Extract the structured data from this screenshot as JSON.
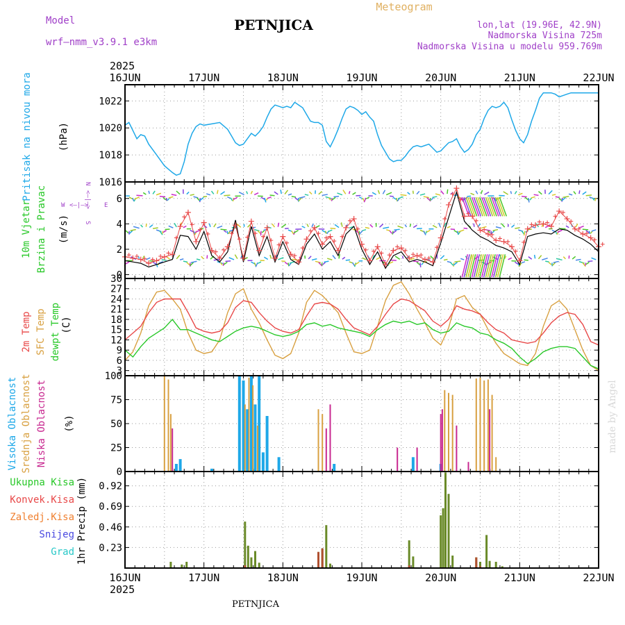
{
  "header": {
    "model_label": "Model",
    "model_name": "wrf—nmm_v3.9.1  e3km",
    "station": "PETNJICA",
    "meteogram": "Meteogram",
    "coords": "lon,lat (19.96E, 42.9N)",
    "elev": "Nadmorska Visina 725m",
    "elev_model": "Nadmorska Visina u modelu 959.769m"
  },
  "footer": {
    "station": "PETNJICA",
    "credit": "made by Angel"
  },
  "x_axis": {
    "labels": [
      "16JUN",
      "17JUN",
      "18JUN",
      "19JUN",
      "20JUN",
      "21JUN",
      "22JUN"
    ],
    "year": "2025"
  },
  "colors": {
    "pressure": "#1ea8e8",
    "temp": "#e84848",
    "sfc": "#d8a040",
    "dew": "#28c828",
    "wind_line": "#000000",
    "gust": "#e84848",
    "purple": "#a040c8",
    "black": "#000000"
  },
  "chart_data": [
    {
      "type": "line",
      "id": "pressure",
      "title": "Pritisak na nivou mora",
      "ylabel": "(hPa)",
      "yticks": [
        1016,
        1018,
        1020,
        1022
      ],
      "ylim": [
        1016,
        1023.2
      ],
      "x_days": [
        0.0,
        0.05,
        0.1,
        0.15,
        0.2,
        0.25,
        0.3,
        0.4,
        0.5,
        0.6,
        0.65,
        0.7,
        0.75,
        0.8,
        0.85,
        0.9,
        0.95,
        1.0,
        1.1,
        1.2,
        1.3,
        1.35,
        1.4,
        1.45,
        1.5,
        1.55,
        1.6,
        1.65,
        1.7,
        1.75,
        1.8,
        1.85,
        1.9,
        1.95,
        2.0,
        2.05,
        2.1,
        2.15,
        2.2,
        2.25,
        2.3,
        2.35,
        2.4,
        2.45,
        2.5,
        2.55,
        2.6,
        2.65,
        2.7,
        2.75,
        2.8,
        2.85,
        2.9,
        2.95,
        3.0,
        3.05,
        3.1,
        3.15,
        3.2,
        3.25,
        3.3,
        3.35,
        3.4,
        3.45,
        3.5,
        3.55,
        3.6,
        3.65,
        3.7,
        3.75,
        3.8,
        3.85,
        3.9,
        3.95,
        4.0,
        4.05,
        4.1,
        4.15,
        4.2,
        4.25,
        4.3,
        4.35,
        4.4,
        4.45,
        4.5,
        4.55,
        4.6,
        4.65,
        4.7,
        4.75,
        4.8,
        4.85,
        4.9,
        4.95,
        5.0,
        5.05,
        5.1,
        5.15,
        5.2,
        5.25,
        5.3,
        5.35,
        5.4,
        5.45,
        5.5,
        5.55,
        5.6,
        5.65,
        5.7,
        5.75,
        5.8,
        5.85,
        5.9,
        5.95,
        6.0
      ],
      "values": [
        1020.2,
        1020.4,
        1019.8,
        1019.2,
        1019.5,
        1019.4,
        1018.8,
        1018.0,
        1017.2,
        1016.7,
        1016.5,
        1016.6,
        1017.5,
        1018.8,
        1019.6,
        1020.1,
        1020.3,
        1020.2,
        1020.3,
        1020.4,
        1019.9,
        1019.4,
        1018.9,
        1018.7,
        1018.8,
        1019.2,
        1019.6,
        1019.4,
        1019.7,
        1020.1,
        1020.8,
        1021.4,
        1021.7,
        1021.6,
        1021.5,
        1021.6,
        1021.5,
        1021.9,
        1021.7,
        1021.5,
        1021.0,
        1020.5,
        1020.4,
        1020.4,
        1020.2,
        1019.0,
        1018.6,
        1019.2,
        1019.9,
        1020.7,
        1021.4,
        1021.6,
        1021.5,
        1021.3,
        1021.0,
        1021.2,
        1020.8,
        1020.5,
        1019.5,
        1018.7,
        1018.2,
        1017.7,
        1017.5,
        1017.6,
        1017.6,
        1017.9,
        1018.3,
        1018.6,
        1018.7,
        1018.6,
        1018.7,
        1018.8,
        1018.5,
        1018.2,
        1018.3,
        1018.6,
        1018.9,
        1019.0,
        1019.2,
        1018.6,
        1018.2,
        1018.4,
        1018.8,
        1019.5,
        1019.9,
        1020.7,
        1021.3,
        1021.6,
        1021.5,
        1021.6,
        1021.9,
        1021.5,
        1020.6,
        1019.8,
        1019.2,
        1018.9,
        1019.5,
        1020.5,
        1021.3,
        1022.2,
        1022.6,
        1022.6,
        1022.6,
        1022.5,
        1022.3,
        1022.4,
        1022.5,
        1022.6,
        1022.6,
        1022.6,
        1022.6,
        1022.6,
        1022.6,
        1022.6,
        1022.6
      ]
    },
    {
      "type": "line",
      "id": "wind",
      "title": "10m Vjetar",
      "title2": "Brzina i Pravac",
      "ylabel": "(m/s)",
      "yticks": [
        0,
        2,
        4,
        6
      ],
      "ylim": [
        -0.3,
        7.3
      ],
      "x_days": [
        0.0,
        0.1,
        0.2,
        0.3,
        0.4,
        0.5,
        0.6,
        0.7,
        0.8,
        0.9,
        1.0,
        1.1,
        1.2,
        1.3,
        1.4,
        1.5,
        1.6,
        1.7,
        1.8,
        1.9,
        2.0,
        2.1,
        2.2,
        2.3,
        2.4,
        2.5,
        2.6,
        2.7,
        2.8,
        2.9,
        3.0,
        3.1,
        3.2,
        3.3,
        3.4,
        3.5,
        3.6,
        3.7,
        3.8,
        3.9,
        4.0,
        4.1,
        4.2,
        4.3,
        4.4,
        4.5,
        4.6,
        4.7,
        4.8,
        4.9,
        5.0,
        5.1,
        5.2,
        5.3,
        5.4,
        5.5,
        5.6,
        5.7,
        5.8,
        5.9,
        6.0
      ],
      "speed": [
        1.1,
        1.0,
        0.9,
        0.6,
        0.8,
        1.0,
        1.2,
        3.1,
        3.0,
        2.0,
        3.4,
        1.5,
        1.0,
        1.8,
        4.3,
        1.0,
        3.8,
        1.5,
        3.0,
        1.0,
        2.6,
        1.2,
        0.8,
        2.4,
        3.2,
        2.0,
        2.6,
        1.5,
        3.2,
        3.8,
        2.0,
        0.8,
        1.8,
        0.5,
        1.5,
        1.8,
        1.0,
        1.2,
        1.0,
        0.7,
        2.5,
        4.5,
        6.5,
        4.2,
        3.5,
        3.0,
        2.7,
        2.3,
        2.1,
        1.8,
        0.8,
        3.0,
        3.2,
        3.3,
        3.2,
        3.6,
        3.5,
        3.1,
        2.8,
        2.4,
        1.8
      ],
      "gust": [
        1.4,
        1.3,
        1.2,
        0.9,
        1.1,
        1.4,
        1.6,
        3.8,
        4.9,
        2.6,
        4.1,
        1.9,
        1.3,
        2.2,
        3.9,
        1.3,
        4.2,
        1.9,
        3.7,
        1.3,
        3.0,
        1.6,
        1.0,
        2.8,
        3.7,
        2.4,
        3.0,
        1.9,
        3.7,
        4.4,
        2.4,
        1.1,
        2.2,
        0.8,
        1.9,
        2.1,
        1.3,
        1.5,
        1.2,
        1.0,
        2.9,
        5.5,
        6.8,
        4.6,
        4.6,
        3.5,
        3.2,
        2.7,
        2.6,
        2.2,
        1.1,
        3.6,
        3.9,
        4.0,
        3.8,
        5.0,
        4.4,
        3.6,
        3.2,
        2.9,
        2.2
      ],
      "arrow_rows": [
        6.2,
        3.6,
        1.1
      ],
      "axis_hint": [
        "W",
        "<—|—>",
        "E",
        "N",
        "<—|—>",
        "S"
      ]
    },
    {
      "type": "line",
      "id": "temperature",
      "title": "2m Temp",
      "title2": "SFC Temp",
      "title3": "dewpt Temp",
      "ylabel": "(C)",
      "yticks": [
        3,
        6,
        9,
        12,
        15,
        18,
        21,
        24,
        27,
        30
      ],
      "ylim": [
        1.5,
        30
      ],
      "x_days": [
        0.0,
        0.1,
        0.2,
        0.3,
        0.4,
        0.5,
        0.6,
        0.7,
        0.8,
        0.9,
        1.0,
        1.1,
        1.2,
        1.3,
        1.4,
        1.5,
        1.6,
        1.7,
        1.8,
        1.9,
        2.0,
        2.1,
        2.2,
        2.3,
        2.4,
        2.5,
        2.6,
        2.7,
        2.8,
        2.9,
        3.0,
        3.1,
        3.2,
        3.3,
        3.4,
        3.5,
        3.6,
        3.7,
        3.8,
        3.9,
        4.0,
        4.1,
        4.2,
        4.3,
        4.4,
        4.5,
        4.6,
        4.7,
        4.8,
        4.9,
        5.0,
        5.1,
        5.2,
        5.3,
        5.4,
        5.5,
        5.6,
        5.7,
        5.8,
        5.9,
        6.0
      ],
      "t2m": [
        12.0,
        14.0,
        16.0,
        20.0,
        23.0,
        24.0,
        24.0,
        24.0,
        20.0,
        15.5,
        14.5,
        14.0,
        14.5,
        17.0,
        21.5,
        23.5,
        23.0,
        20.0,
        17.5,
        15.5,
        14.5,
        14.0,
        15.0,
        19.0,
        22.5,
        23.0,
        22.5,
        21.0,
        18.0,
        15.5,
        14.5,
        13.5,
        16.0,
        19.5,
        22.5,
        24.0,
        23.5,
        22.0,
        20.5,
        17.5,
        16.0,
        18.0,
        22.0,
        21.0,
        20.5,
        19.5,
        17.0,
        15.0,
        14.0,
        12.0,
        11.5,
        11.0,
        11.5,
        14.0,
        17.0,
        19.0,
        20.0,
        19.5,
        16.5,
        11.5,
        10.5
      ],
      "sfc": [
        6.0,
        8.5,
        14.0,
        22.0,
        26.0,
        26.5,
        24.0,
        21.0,
        14.0,
        9.0,
        8.0,
        8.5,
        12.0,
        20.0,
        25.5,
        27.0,
        21.0,
        17.0,
        12.0,
        7.5,
        6.5,
        8.0,
        14.0,
        23.0,
        26.5,
        25.0,
        22.5,
        20.0,
        14.0,
        8.5,
        8.0,
        9.0,
        16.0,
        23.5,
        28.0,
        29.0,
        25.5,
        21.0,
        17.0,
        12.5,
        10.5,
        15.5,
        24.0,
        25.0,
        21.5,
        19.5,
        15.0,
        11.0,
        8.0,
        6.5,
        5.0,
        4.5,
        8.0,
        16.0,
        22.0,
        23.5,
        21.0,
        15.0,
        9.0,
        4.5,
        3.0
      ],
      "dew": [
        9.0,
        7.0,
        10.0,
        12.5,
        14.0,
        15.5,
        18.0,
        15.0,
        15.0,
        14.0,
        13.0,
        12.0,
        11.5,
        13.0,
        14.5,
        15.5,
        16.0,
        15.5,
        14.5,
        13.5,
        13.0,
        13.5,
        14.5,
        16.5,
        17.0,
        16.0,
        16.5,
        15.5,
        15.0,
        14.5,
        14.0,
        13.0,
        15.0,
        16.5,
        17.5,
        17.0,
        17.5,
        16.5,
        17.0,
        15.0,
        14.0,
        14.5,
        17.0,
        16.0,
        15.5,
        14.0,
        13.5,
        12.0,
        11.0,
        9.5,
        7.0,
        5.0,
        6.5,
        8.5,
        9.5,
        10.0,
        10.0,
        9.5,
        7.0,
        4.5,
        3.5
      ]
    },
    {
      "type": "bar",
      "id": "clouds",
      "title": "Visoka Oblacnost",
      "title2": "Srednja Oblacnost",
      "title3": "Niska Oblacnost",
      "ylabel": "(%)",
      "yticks": [
        0,
        25,
        50,
        75,
        100
      ],
      "ylim": [
        0,
        100
      ],
      "series": [
        {
          "name": "Visoka",
          "color": "#1ea8e8",
          "x": [
            0.7,
            0.65,
            1.1,
            1.45,
            1.5,
            1.55,
            1.6,
            1.65,
            1.7,
            1.75,
            1.8,
            1.95,
            2.65,
            4.0,
            3.65
          ],
          "values": [
            13,
            8,
            3,
            100,
            95,
            65,
            100,
            70,
            100,
            20,
            58,
            15,
            8,
            8,
            15
          ]
        },
        {
          "name": "Srednja",
          "color": "#d8a040",
          "x": [
            0.5,
            0.55,
            0.58,
            1.52,
            1.57,
            1.62,
            1.68,
            2.45,
            2.5,
            4.05,
            4.1,
            4.15,
            4.45,
            4.5,
            4.55,
            4.6,
            4.65,
            4.7
          ],
          "values": [
            100,
            96,
            60,
            70,
            98,
            90,
            48,
            65,
            60,
            85,
            82,
            80,
            97,
            98,
            95,
            96,
            80,
            15
          ]
        },
        {
          "name": "Niska",
          "color": "#c82890",
          "x": [
            0.6,
            2.55,
            2.6,
            4.02,
            4.2,
            4.35,
            4.62,
            3.7,
            3.45,
            4.0
          ],
          "values": [
            45,
            45,
            70,
            65,
            48,
            10,
            65,
            25,
            25,
            60
          ]
        }
      ]
    },
    {
      "type": "bar",
      "id": "precip",
      "title": "Ukupna Kisa",
      "title2": "Konvek.Kisa",
      "title3": "Zaledj.Kisa",
      "title4": "Snijeg",
      "title5": "Grad",
      "ylabel": "1hr Precip (mm)",
      "yticks": [
        0.23,
        0.46,
        0.69,
        0.92
      ],
      "ylim": [
        0,
        1.08
      ],
      "tick_labels": [
        "0.23",
        "0.46",
        "0.69",
        "0.92"
      ],
      "x": [
        0.58,
        0.72,
        0.78,
        1.52,
        1.56,
        1.6,
        1.65,
        1.7,
        2.45,
        2.5,
        2.55,
        2.6,
        3.6,
        3.65,
        4.0,
        4.03,
        4.06,
        4.1,
        4.15,
        4.45,
        4.5,
        4.58,
        4.62,
        4.7,
        4.78
      ],
      "values": [
        0.07,
        0.04,
        0.07,
        0.52,
        0.25,
        0.12,
        0.19,
        0.06,
        0.18,
        0.22,
        0.48,
        0.05,
        0.31,
        0.13,
        0.59,
        0.67,
        1.07,
        0.83,
        0.14,
        0.12,
        0.07,
        0.37,
        0.08,
        0.07,
        0.02
      ],
      "conv": [
        0.0,
        0.0,
        0.0,
        0.03,
        0.0,
        0.0,
        0.0,
        0.0,
        0.18,
        0.22,
        0.0,
        0.0,
        0.03,
        0.0,
        0.0,
        0.0,
        0.0,
        0.0,
        0.0,
        0.12,
        0.02,
        0.0,
        0.0,
        0.0,
        0.0
      ]
    }
  ]
}
